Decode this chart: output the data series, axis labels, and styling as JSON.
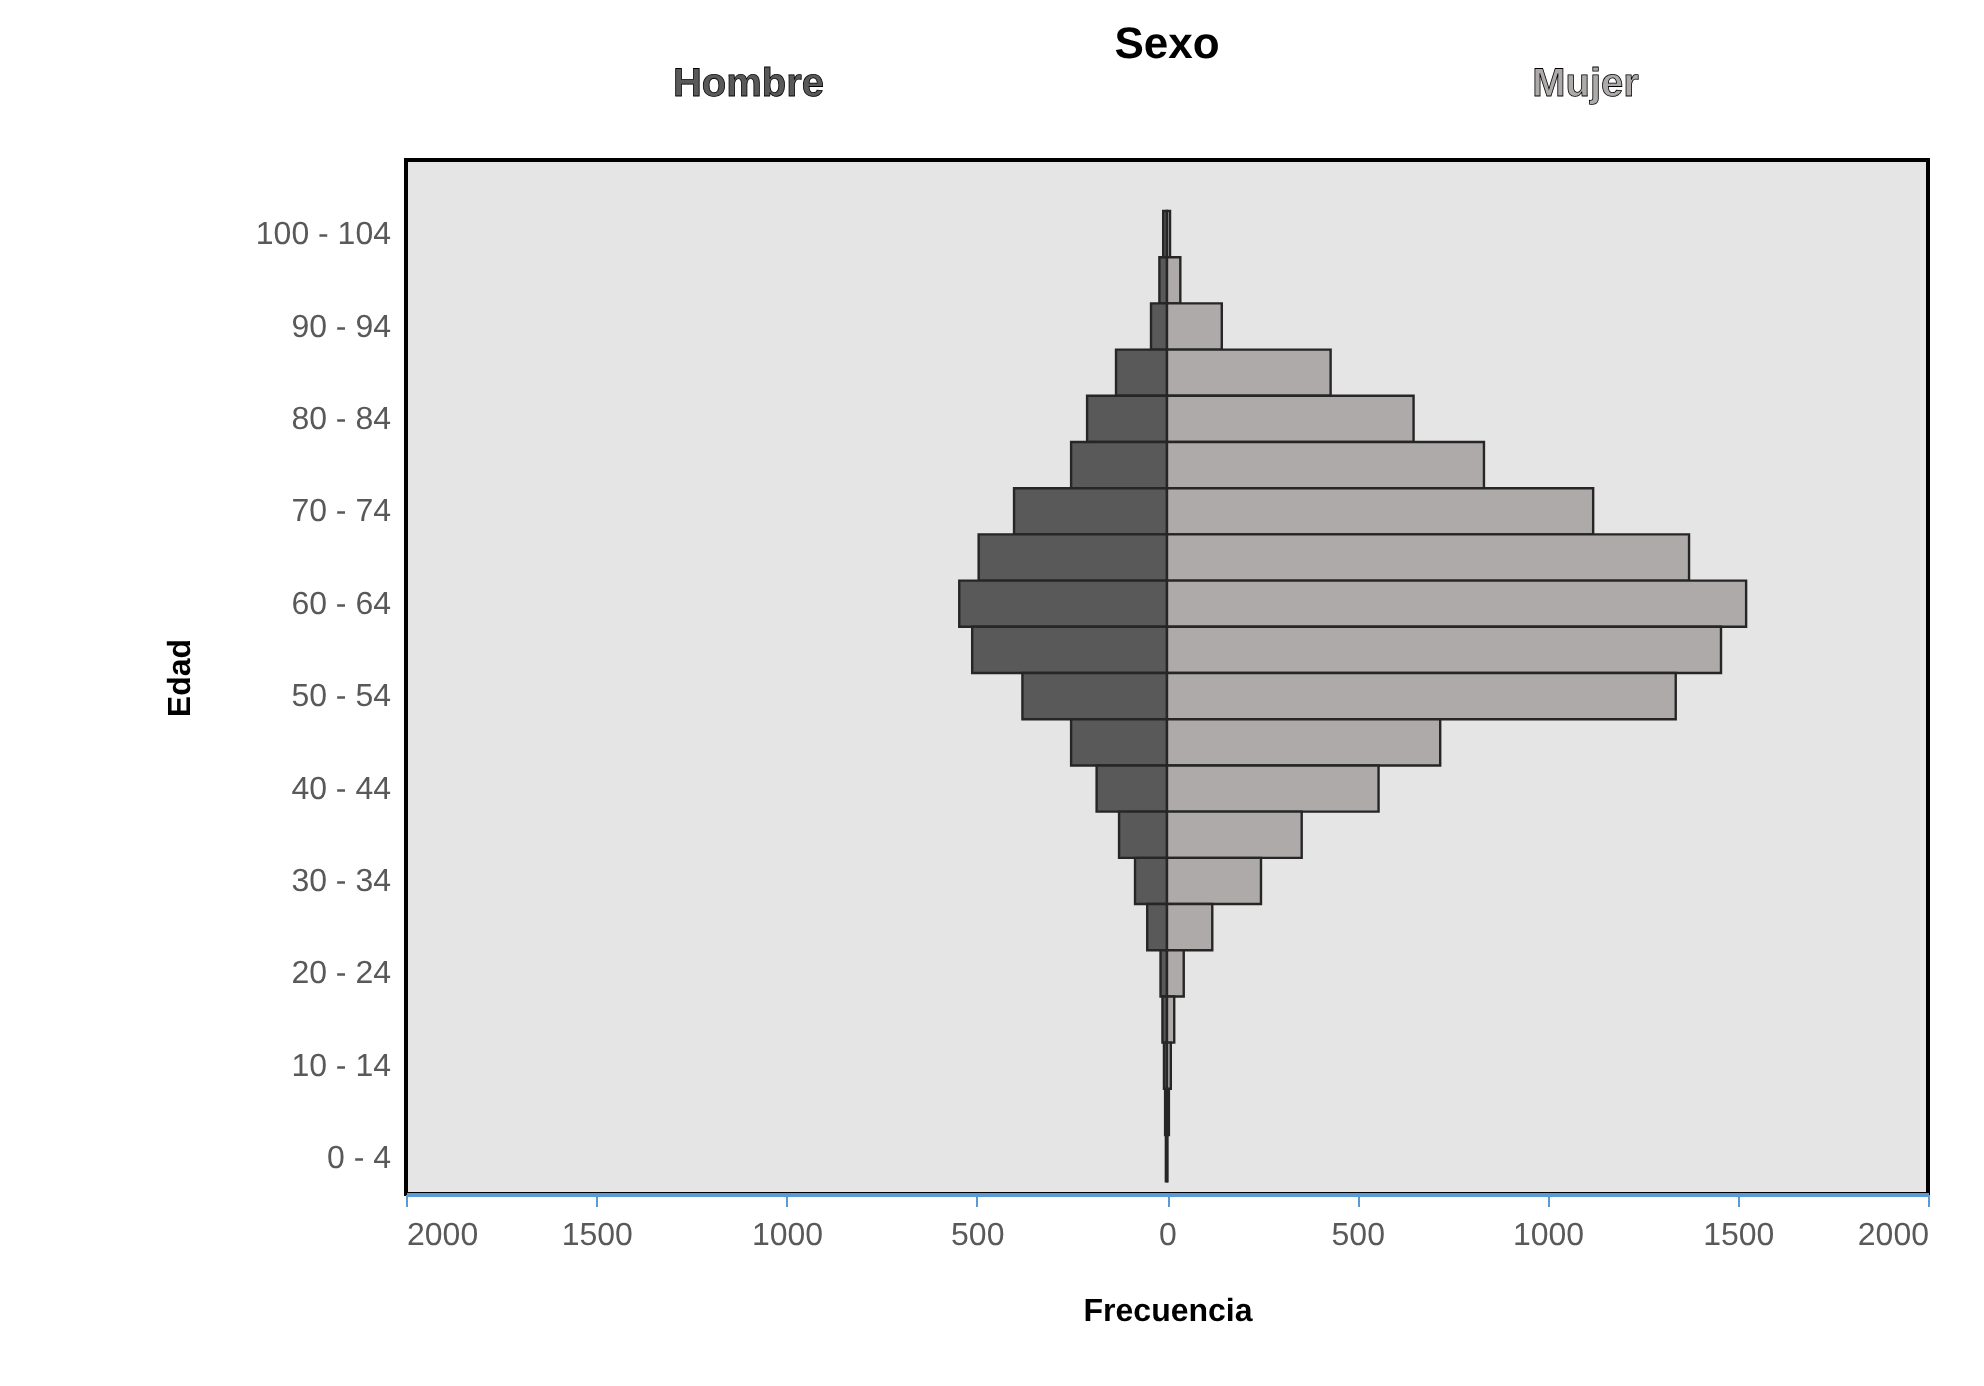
{
  "chart_data": {
    "type": "bar",
    "orientation": "horizontal",
    "stacked": true,
    "title": "Sexo",
    "xlabel": "Frecuencia",
    "ylabel": "Edad",
    "categories": [
      "100 - 104",
      null,
      "90 - 94",
      null,
      "80 - 84",
      null,
      "70 - 74",
      null,
      "60 - 64",
      null,
      "50 - 54",
      null,
      "40 - 44",
      null,
      "30 - 34",
      null,
      "20 - 24",
      null,
      "10 - 14",
      null,
      "0 - 4"
    ],
    "series": [
      {
        "name": "Hombre",
        "color": "#595959",
        "values": [
          -10,
          -20,
          -42,
          -134,
          -210,
          -252,
          -402,
          -495,
          -546,
          -512,
          -380,
          -252,
          -185,
          -126,
          -84,
          -52,
          -17,
          -12,
          -8,
          -5,
          -3
        ]
      },
      {
        "name": "Mujer",
        "color": "#aeaaaa",
        "values": [
          8,
          35,
          144,
          430,
          648,
          833,
          1120,
          1372,
          1522,
          1456,
          1337,
          718,
          556,
          354,
          247,
          119,
          44,
          19,
          10,
          5,
          1
        ]
      }
    ],
    "xlim": [
      -2000,
      2000
    ],
    "xticks": [
      {
        "value": -2000,
        "label": "2000"
      },
      {
        "value": -1500,
        "label": "1500"
      },
      {
        "value": -1000,
        "label": "1000"
      },
      {
        "value": -500,
        "label": "500"
      },
      0,
      500,
      1000,
      1500,
      2000
    ]
  }
}
